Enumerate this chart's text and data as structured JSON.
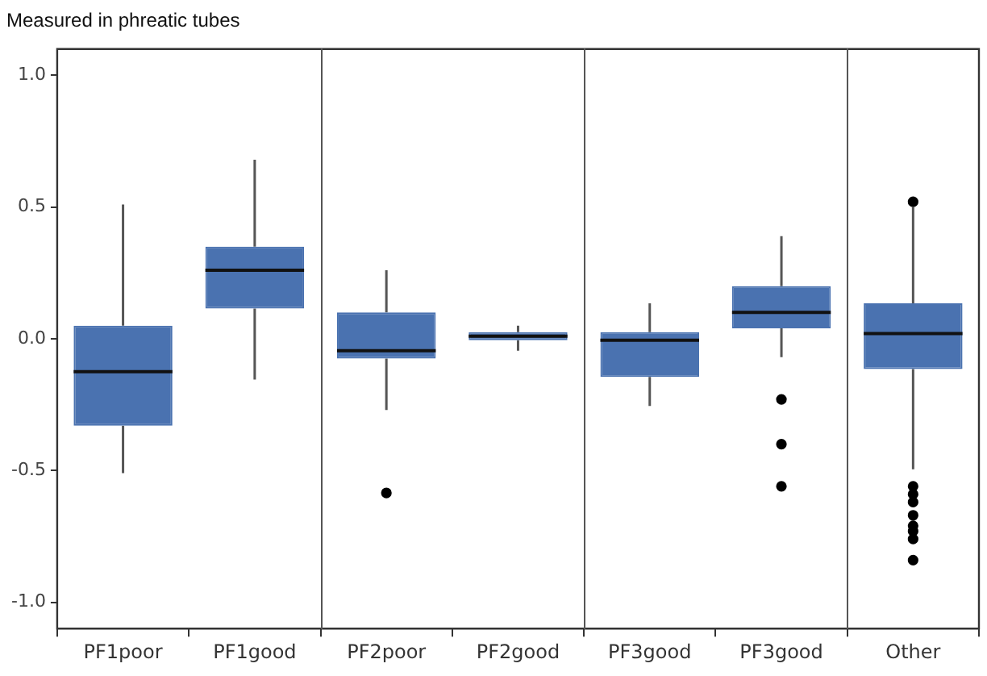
{
  "chart_data": {
    "type": "box",
    "title": "Measured in phreatic tubes",
    "categories": [
      "PF1poor",
      "PF1good",
      "PF2poor",
      "PF2good",
      "PF3good",
      "PF3good",
      "Other"
    ],
    "color": "#4a72b0",
    "boxes": [
      {
        "low": -0.51,
        "q1": -0.33,
        "median": -0.125,
        "q3": 0.05,
        "high": 0.51
      },
      {
        "low": -0.155,
        "q1": 0.115,
        "median": 0.26,
        "q3": 0.35,
        "high": 0.68
      },
      {
        "low": -0.27,
        "q1": -0.075,
        "median": -0.045,
        "q3": 0.1,
        "high": 0.26,
        "outliers": [
          -0.585
        ]
      },
      {
        "low": -0.045,
        "q1": -0.005,
        "median": 0.01,
        "q3": 0.025,
        "high": 0.05
      },
      {
        "low": -0.255,
        "q1": -0.145,
        "median": -0.005,
        "q3": 0.025,
        "high": 0.135
      },
      {
        "low": -0.07,
        "q1": 0.04,
        "median": 0.1,
        "q3": 0.2,
        "high": 0.39,
        "outliers": [
          -0.23,
          -0.4,
          -0.56
        ]
      },
      {
        "low": -0.495,
        "q1": -0.115,
        "median": 0.02,
        "q3": 0.135,
        "high": 0.5,
        "outliers": [
          0.52,
          -0.56,
          -0.59,
          -0.62,
          -0.67,
          -0.71,
          -0.73,
          -0.76,
          -0.84
        ]
      }
    ],
    "ylim": [
      -1.1,
      1.1
    ],
    "yticks": [
      {
        "value": -1,
        "label": "-1.0"
      },
      {
        "value": -0.5,
        "label": "-0.5"
      },
      {
        "value": 0,
        "label": "0.0"
      },
      {
        "value": 0.5,
        "label": "0.5"
      },
      {
        "value": 1,
        "label": "1.0"
      }
    ],
    "grid": false,
    "legend": false
  }
}
